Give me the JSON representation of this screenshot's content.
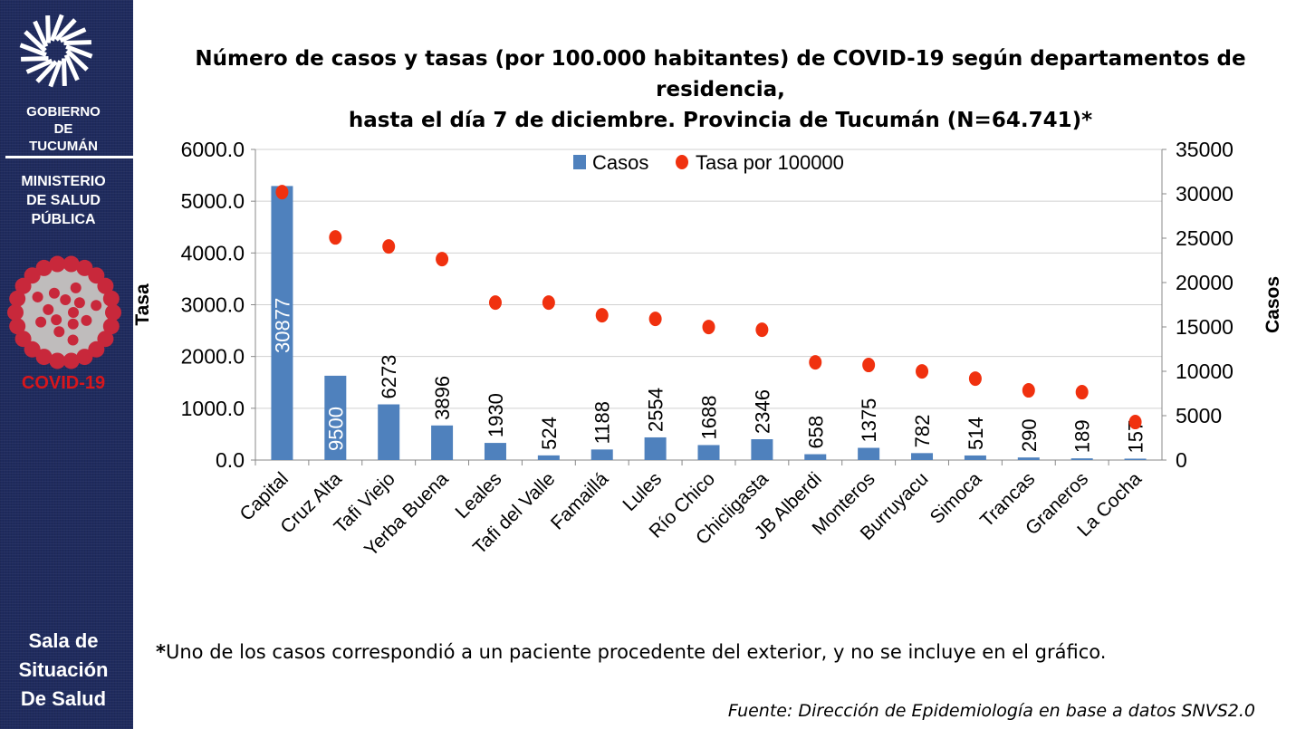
{
  "sidebar": {
    "org_line1": "GOBIERNO",
    "org_line2": "DE",
    "org_line3": "TUCUMÁN",
    "ministry_line1": "MINISTERIO",
    "ministry_line2": "DE SALUD",
    "ministry_line3": "PÚBLICA",
    "covid_label": "COVID-19",
    "sala_line1": "Sala de",
    "sala_line2": "Situación",
    "sala_line3": "De Salud",
    "colors": {
      "background": "#1f2b5e",
      "covid_red": "#d8161b"
    }
  },
  "title_line1": "Número de casos y tasas (por 100.000 habitantes) de COVID-19 según departamentos de residencia,",
  "title_line2": "hasta el día 7 de diciembre. Provincia de Tucumán (N=64.741)*",
  "note_star": "*",
  "note_text": "Uno de los casos correspondió a un paciente procedente del exterior, y no se incluye en el gráfico.",
  "source": "Fuente: Dirección de Epidemiología en base a datos SNVS2.0",
  "chart_data": {
    "type": "bar",
    "categories": [
      "Capital",
      "Cruz Alta",
      "Tafi Viejo",
      "Yerba Buena",
      "Leales",
      "Tafi del Valle",
      "Famaillá",
      "Lules",
      "Río Chico",
      "Chicligasta",
      "JB Alberdi",
      "Monteros",
      "Burruyacu",
      "Simoca",
      "Trancas",
      "Graneros",
      "La Cocha"
    ],
    "series": [
      {
        "name": "Casos",
        "type": "bar",
        "axis": "right",
        "color": "#4f81bd",
        "values": [
          30877,
          9500,
          6273,
          3896,
          1930,
          524,
          1188,
          2554,
          1688,
          2346,
          658,
          1375,
          782,
          514,
          290,
          189,
          157
        ]
      },
      {
        "name": "Tasa por 100000",
        "type": "scatter",
        "axis": "left",
        "color": "#f0310f",
        "values": [
          5175,
          4300,
          4126,
          3881,
          3042,
          3042,
          2797,
          2727,
          2570,
          2517,
          1888,
          1836,
          1713,
          1573,
          1346,
          1311,
          734
        ]
      }
    ],
    "ylabel_left": "Tasa",
    "ylabel_right": "Casos",
    "ylim_left": [
      0,
      6000
    ],
    "ylim_right": [
      0,
      35000
    ],
    "yticks_left": [
      "0.0",
      "1000.0",
      "2000.0",
      "3000.0",
      "4000.0",
      "5000.0",
      "6000.0"
    ],
    "yticks_right": [
      "0",
      "5000",
      "10000",
      "15000",
      "20000",
      "25000",
      "30000",
      "35000"
    ],
    "grid": true,
    "legend_position": "top-center"
  }
}
